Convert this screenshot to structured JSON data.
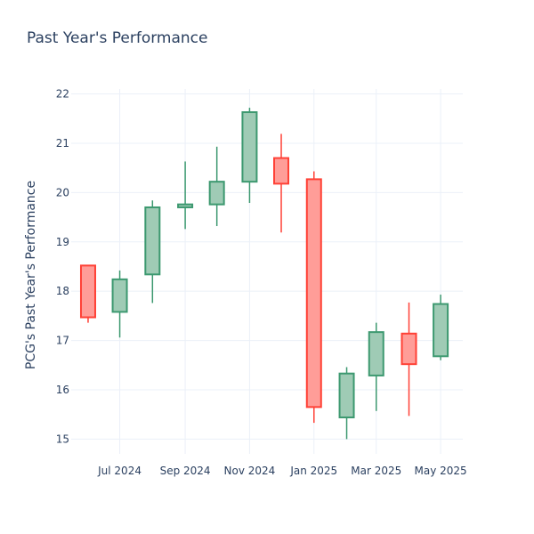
{
  "chart_data": {
    "type": "candlestick",
    "title": "Past Year's Performance",
    "xlabel": "",
    "ylabel": "PCG's Past Year's Performance",
    "ylim": [
      14.7,
      22.1
    ],
    "xlim": [
      "2024-05-16",
      "2025-05-22"
    ],
    "grid": true,
    "legend": "none",
    "y_ticks": [
      15,
      16,
      17,
      18,
      19,
      20,
      21,
      22
    ],
    "x_ticks": [
      {
        "date": "2024-07-01",
        "label": "Jul 2024"
      },
      {
        "date": "2024-09-01",
        "label": "Sep 2024"
      },
      {
        "date": "2024-11-01",
        "label": "Nov 2024"
      },
      {
        "date": "2025-01-01",
        "label": "Jan 2025"
      },
      {
        "date": "2025-03-01",
        "label": "Mar 2025"
      },
      {
        "date": "2025-05-01",
        "label": "May 2025"
      }
    ],
    "candles": [
      {
        "date": "2024-06-01",
        "open": 18.52,
        "high": 18.52,
        "low": 17.36,
        "close": 17.47
      },
      {
        "date": "2024-07-01",
        "open": 17.58,
        "high": 18.42,
        "low": 17.06,
        "close": 18.24
      },
      {
        "date": "2024-08-01",
        "open": 18.34,
        "high": 19.84,
        "low": 17.76,
        "close": 19.7
      },
      {
        "date": "2024-09-01",
        "open": 19.7,
        "high": 20.63,
        "low": 19.26,
        "close": 19.76
      },
      {
        "date": "2024-10-01",
        "open": 19.76,
        "high": 20.93,
        "low": 19.32,
        "close": 20.22
      },
      {
        "date": "2024-11-01",
        "open": 20.22,
        "high": 21.72,
        "low": 19.79,
        "close": 21.63
      },
      {
        "date": "2024-12-01",
        "open": 20.7,
        "high": 21.19,
        "low": 19.19,
        "close": 20.18
      },
      {
        "date": "2025-01-01",
        "open": 20.27,
        "high": 20.43,
        "low": 15.33,
        "close": 15.65
      },
      {
        "date": "2025-02-01",
        "open": 15.44,
        "high": 16.46,
        "low": 15.0,
        "close": 16.33
      },
      {
        "date": "2025-03-01",
        "open": 16.29,
        "high": 17.36,
        "low": 15.57,
        "close": 17.17
      },
      {
        "date": "2025-04-01",
        "open": 17.14,
        "high": 17.77,
        "low": 15.47,
        "close": 16.52
      },
      {
        "date": "2025-05-01",
        "open": 16.68,
        "high": 17.93,
        "low": 16.6,
        "close": 17.74
      }
    ],
    "colors": {
      "increasing_line": "#3d9970",
      "increasing_fill": "#9fcbb5",
      "decreasing_line": "#ff4136",
      "decreasing_fill": "#ff9d98",
      "grid": "#ebf0f8",
      "text": "#2a3f5f"
    }
  }
}
